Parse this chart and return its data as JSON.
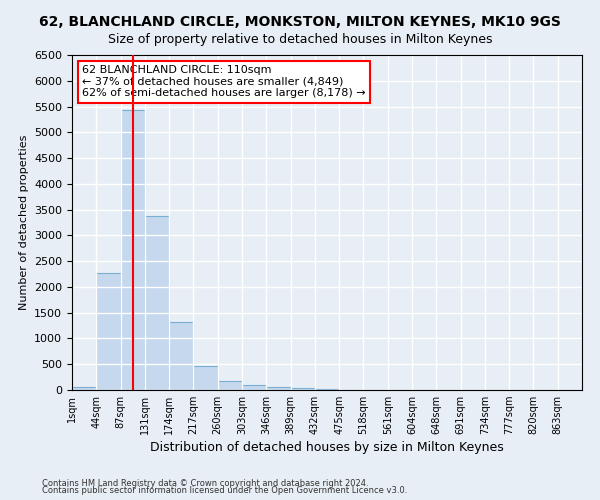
{
  "title": "62, BLANCHLAND CIRCLE, MONKSTON, MILTON KEYNES, MK10 9GS",
  "subtitle": "Size of property relative to detached houses in Milton Keynes",
  "xlabel": "Distribution of detached houses by size in Milton Keynes",
  "ylabel": "Number of detached properties",
  "footnote1": "Contains HM Land Registry data © Crown copyright and database right 2024.",
  "footnote2": "Contains public sector information licensed under the Open Government Licence v3.0.",
  "bar_labels": [
    "1sqm",
    "44sqm",
    "87sqm",
    "131sqm",
    "174sqm",
    "217sqm",
    "260sqm",
    "303sqm",
    "346sqm",
    "389sqm",
    "432sqm",
    "475sqm",
    "518sqm",
    "561sqm",
    "604sqm",
    "648sqm",
    "691sqm",
    "734sqm",
    "777sqm",
    "820sqm",
    "863sqm"
  ],
  "bar_values": [
    65,
    2270,
    5430,
    3380,
    1310,
    475,
    165,
    90,
    55,
    30,
    10,
    5,
    0,
    0,
    0,
    0,
    0,
    0,
    0,
    0,
    0
  ],
  "bar_color": "#c5d8ed",
  "bar_edge_color": "#7aafd4",
  "vline_color": "red",
  "vline_x_index": 2.5,
  "annotation_text": "62 BLANCHLAND CIRCLE: 110sqm\n← 37% of detached houses are smaller (4,849)\n62% of semi-detached houses are larger (8,178) →",
  "annotation_box_color": "white",
  "annotation_box_edge_color": "red",
  "ylim": [
    0,
    6500
  ],
  "yticks": [
    0,
    500,
    1000,
    1500,
    2000,
    2500,
    3000,
    3500,
    4000,
    4500,
    5000,
    5500,
    6000,
    6500
  ],
  "bg_color": "#e8eef5",
  "plot_bg_color": "#e8eef5",
  "grid_color": "white",
  "title_fontsize": 10,
  "subtitle_fontsize": 9,
  "annotation_fontsize": 8
}
